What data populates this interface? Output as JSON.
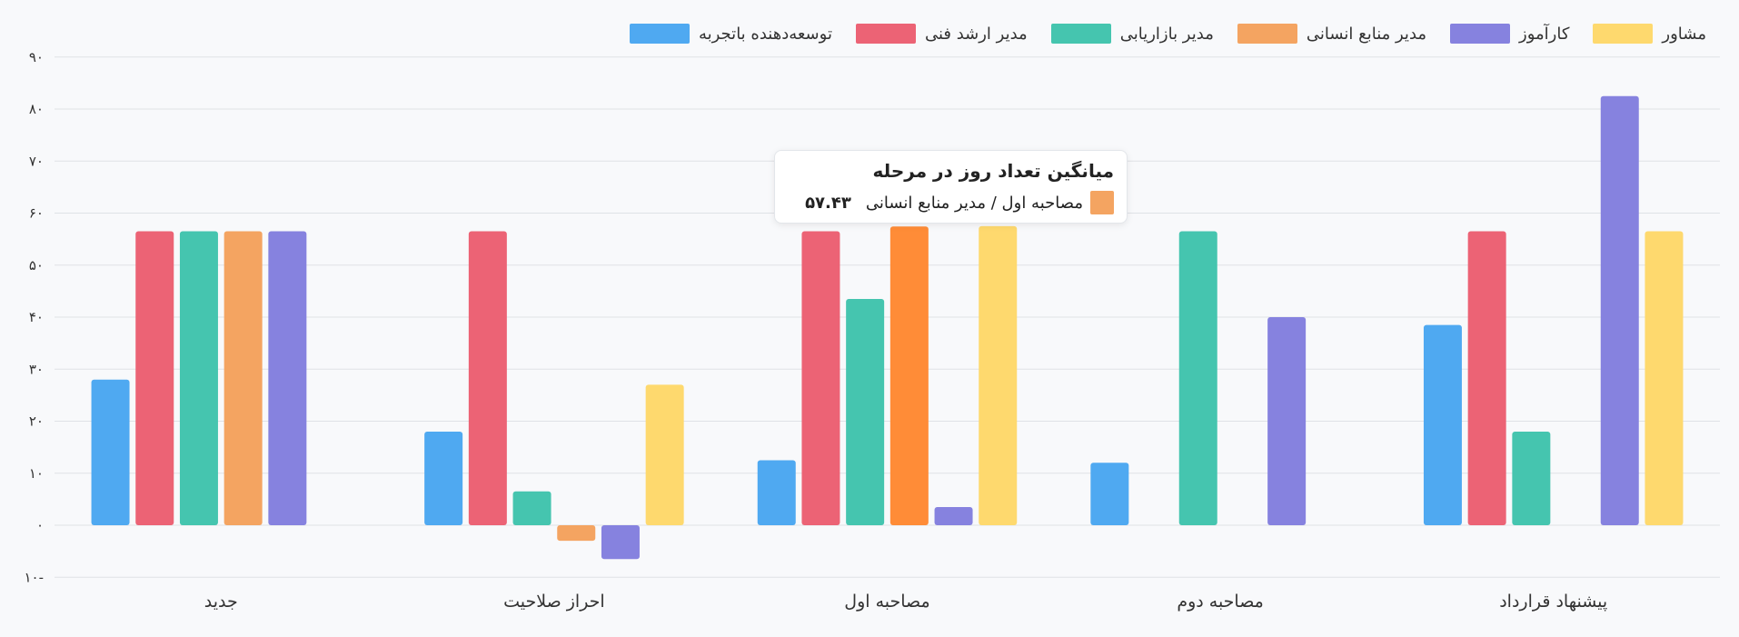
{
  "chart_data": {
    "type": "bar",
    "categories": [
      "جدید",
      "احراز صلاحیت",
      "مصاحبه اول",
      "مصاحبه دوم",
      "پیشنهاد قرارداد"
    ],
    "series": [
      {
        "name": "توسعه‌دهنده باتجربه",
        "color": "#4fa9f1",
        "values": [
          28,
          18,
          12.5,
          12,
          38.5
        ]
      },
      {
        "name": "مدیر ارشد فنی",
        "color": "#ec6375",
        "values": [
          56.5,
          56.5,
          56.5,
          null,
          56.5
        ]
      },
      {
        "name": "مدیر بازاریابی",
        "color": "#45c5af",
        "values": [
          56.5,
          6.5,
          43.5,
          56.5,
          18
        ]
      },
      {
        "name": "مدیر منابع انسانی",
        "color": "#f4a461",
        "values": [
          56.5,
          -3,
          57.43,
          null,
          null
        ]
      },
      {
        "name": "کارآموز",
        "color": "#8682df",
        "values": [
          56.5,
          -6.5,
          3.5,
          40,
          82.5
        ]
      },
      {
        "name": "مشاور",
        "color": "#fed96e",
        "values": [
          null,
          27,
          57.5,
          null,
          56.5
        ]
      }
    ],
    "ylim": [
      -10,
      90
    ],
    "yticks": [
      "۱۰-",
      "۰",
      "۱۰",
      "۲۰",
      "۳۰",
      "۴۰",
      "۵۰",
      "۶۰",
      "۷۰",
      "۸۰",
      "۹۰"
    ],
    "grid": true,
    "legend_position": "top-right",
    "highlight": {
      "series_index": 3,
      "category_index": 2,
      "color": "#ff8c37"
    }
  },
  "tooltip": {
    "title": "میانگین تعداد روز در مرحله",
    "label": "مصاحبه اول / مدیر منابع انسانی",
    "value": "۵۷.۴۳",
    "color": "#f4a461"
  }
}
